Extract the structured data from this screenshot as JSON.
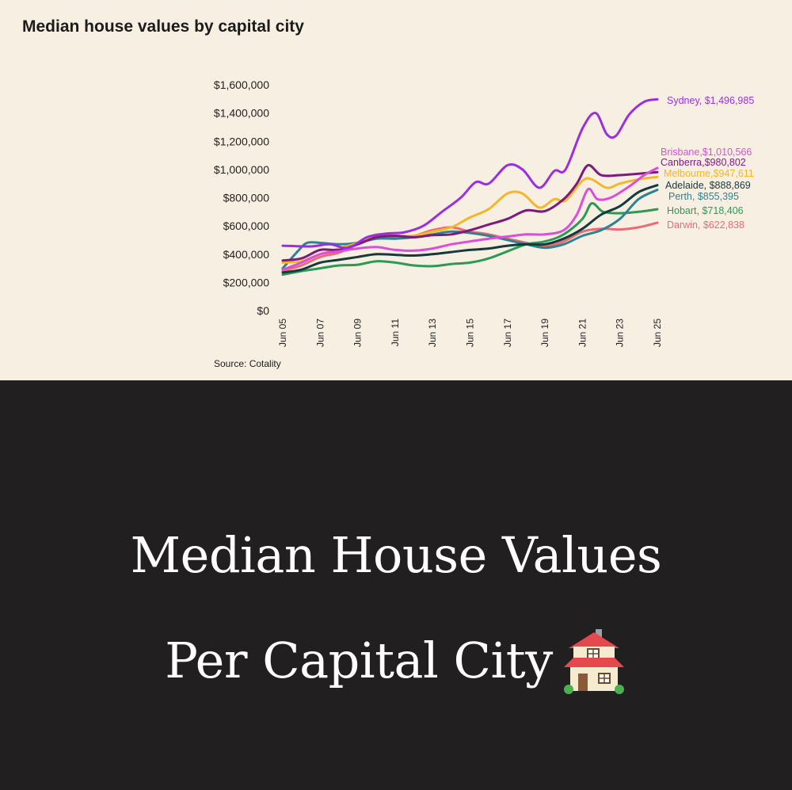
{
  "chart_data": {
    "type": "line",
    "title": "Median house values by capital city",
    "source": "Source: Cotality",
    "y_ticks": [
      "$0",
      "$200,000",
      "$400,000",
      "$600,000",
      "$800,000",
      "$1,000,000",
      "$1,200,000",
      "$1,400,000",
      "$1,600,000"
    ],
    "ylim": [
      0,
      1600000
    ],
    "x_ticks": [
      "Jun 05",
      "Jun 07",
      "Jun 09",
      "Jun 11",
      "Jun 13",
      "Jun 15",
      "Jun 17",
      "Jun 19",
      "Jun 21",
      "Jun 23",
      "Jun 25"
    ],
    "xlim": [
      2005.5,
      2025.5
    ],
    "grid": false,
    "legend": "end-labels",
    "series": [
      {
        "name": "Sydney",
        "end_label": "Sydney, $1,496,985",
        "color": "#9b2fe0",
        "points": [
          [
            2005.5,
            460000
          ],
          [
            2007,
            455000
          ],
          [
            2008,
            470000
          ],
          [
            2009,
            445000
          ],
          [
            2010,
            520000
          ],
          [
            2011,
            545000
          ],
          [
            2012,
            555000
          ],
          [
            2013,
            600000
          ],
          [
            2014,
            700000
          ],
          [
            2015,
            800000
          ],
          [
            2015.8,
            910000
          ],
          [
            2016.5,
            900000
          ],
          [
            2017.5,
            1030000
          ],
          [
            2018.3,
            1000000
          ],
          [
            2019.2,
            870000
          ],
          [
            2020,
            990000
          ],
          [
            2020.6,
            1000000
          ],
          [
            2021.5,
            1290000
          ],
          [
            2022.2,
            1400000
          ],
          [
            2022.8,
            1250000
          ],
          [
            2023.3,
            1240000
          ],
          [
            2024,
            1390000
          ],
          [
            2024.8,
            1480000
          ],
          [
            2025.5,
            1496985
          ]
        ]
      },
      {
        "name": "Brisbane",
        "end_label": "Brisbane,$1,010,566",
        "color": "#d94fd8",
        "points": [
          [
            2005.5,
            290000
          ],
          [
            2006.5,
            340000
          ],
          [
            2007.5,
            400000
          ],
          [
            2008.5,
            420000
          ],
          [
            2009.5,
            440000
          ],
          [
            2010.5,
            450000
          ],
          [
            2011.5,
            430000
          ],
          [
            2012.5,
            425000
          ],
          [
            2013.5,
            440000
          ],
          [
            2014.5,
            470000
          ],
          [
            2015.5,
            490000
          ],
          [
            2016.5,
            510000
          ],
          [
            2017.5,
            525000
          ],
          [
            2018.5,
            540000
          ],
          [
            2019.5,
            540000
          ],
          [
            2020.5,
            570000
          ],
          [
            2021.2,
            680000
          ],
          [
            2021.8,
            860000
          ],
          [
            2022.3,
            790000
          ],
          [
            2023,
            800000
          ],
          [
            2024,
            880000
          ],
          [
            2024.8,
            960000
          ],
          [
            2025.5,
            1010566
          ]
        ]
      },
      {
        "name": "Canberra",
        "end_label": "Canberra,$980,802",
        "color": "#7c1a7e",
        "points": [
          [
            2005.5,
            355000
          ],
          [
            2006.5,
            370000
          ],
          [
            2007.5,
            430000
          ],
          [
            2008.5,
            430000
          ],
          [
            2009.5,
            470000
          ],
          [
            2010.5,
            520000
          ],
          [
            2011.5,
            530000
          ],
          [
            2012.5,
            520000
          ],
          [
            2013.5,
            535000
          ],
          [
            2014.5,
            540000
          ],
          [
            2015.5,
            570000
          ],
          [
            2016.5,
            610000
          ],
          [
            2017.5,
            650000
          ],
          [
            2018.5,
            710000
          ],
          [
            2019.5,
            705000
          ],
          [
            2020.5,
            790000
          ],
          [
            2021.2,
            900000
          ],
          [
            2021.8,
            1030000
          ],
          [
            2022.5,
            960000
          ],
          [
            2023.5,
            960000
          ],
          [
            2024.5,
            970000
          ],
          [
            2025.5,
            980802
          ]
        ]
      },
      {
        "name": "Melbourne",
        "end_label": "Melbourne,$947,611",
        "color": "#f2b72a",
        "points": [
          [
            2005.5,
            340000
          ],
          [
            2006.5,
            350000
          ],
          [
            2007.5,
            400000
          ],
          [
            2008.5,
            440000
          ],
          [
            2009.5,
            480000
          ],
          [
            2010.5,
            540000
          ],
          [
            2011.5,
            530000
          ],
          [
            2012.5,
            530000
          ],
          [
            2013.5,
            560000
          ],
          [
            2014.5,
            590000
          ],
          [
            2015.5,
            660000
          ],
          [
            2016.5,
            720000
          ],
          [
            2017.5,
            830000
          ],
          [
            2018.3,
            830000
          ],
          [
            2019.2,
            730000
          ],
          [
            2020,
            790000
          ],
          [
            2020.6,
            780000
          ],
          [
            2021.5,
            920000
          ],
          [
            2022,
            930000
          ],
          [
            2022.8,
            870000
          ],
          [
            2023.5,
            900000
          ],
          [
            2024.5,
            930000
          ],
          [
            2025.5,
            947611
          ]
        ]
      },
      {
        "name": "Adelaide",
        "end_label": "Adelaide, $888,869",
        "color": "#153a3e",
        "points": [
          [
            2005.5,
            270000
          ],
          [
            2006.5,
            290000
          ],
          [
            2007.5,
            340000
          ],
          [
            2008.5,
            360000
          ],
          [
            2009.5,
            380000
          ],
          [
            2010.5,
            400000
          ],
          [
            2011.5,
            395000
          ],
          [
            2012.5,
            390000
          ],
          [
            2013.5,
            400000
          ],
          [
            2014.5,
            415000
          ],
          [
            2015.5,
            430000
          ],
          [
            2016.5,
            440000
          ],
          [
            2017.5,
            460000
          ],
          [
            2018.5,
            470000
          ],
          [
            2019.5,
            470000
          ],
          [
            2020.5,
            510000
          ],
          [
            2021.5,
            580000
          ],
          [
            2022.5,
            680000
          ],
          [
            2023.5,
            740000
          ],
          [
            2024.5,
            840000
          ],
          [
            2025.5,
            888869
          ]
        ]
      },
      {
        "name": "Perth",
        "end_label": "Perth, $855,395",
        "color": "#2d8390",
        "points": [
          [
            2005.5,
            300000
          ],
          [
            2006.3,
            420000
          ],
          [
            2006.8,
            480000
          ],
          [
            2007.5,
            480000
          ],
          [
            2008.5,
            470000
          ],
          [
            2009.5,
            480000
          ],
          [
            2010.5,
            510000
          ],
          [
            2011.5,
            510000
          ],
          [
            2012.5,
            520000
          ],
          [
            2013.5,
            540000
          ],
          [
            2014.5,
            560000
          ],
          [
            2015.5,
            550000
          ],
          [
            2016.5,
            530000
          ],
          [
            2017.5,
            500000
          ],
          [
            2018.5,
            470000
          ],
          [
            2019.5,
            445000
          ],
          [
            2020.5,
            470000
          ],
          [
            2021.5,
            530000
          ],
          [
            2022.5,
            570000
          ],
          [
            2023.5,
            650000
          ],
          [
            2024.5,
            790000
          ],
          [
            2025.5,
            855395
          ]
        ]
      },
      {
        "name": "Hobart",
        "end_label": "Hobart, $718,406",
        "color": "#2c9a55",
        "points": [
          [
            2005.5,
            255000
          ],
          [
            2006.5,
            280000
          ],
          [
            2007.5,
            300000
          ],
          [
            2008.5,
            320000
          ],
          [
            2009.5,
            325000
          ],
          [
            2010.5,
            350000
          ],
          [
            2011.5,
            340000
          ],
          [
            2012.5,
            320000
          ],
          [
            2013.5,
            315000
          ],
          [
            2014.5,
            330000
          ],
          [
            2015.5,
            340000
          ],
          [
            2016.5,
            370000
          ],
          [
            2017.5,
            420000
          ],
          [
            2018.5,
            470000
          ],
          [
            2019.5,
            490000
          ],
          [
            2020.5,
            540000
          ],
          [
            2021.5,
            650000
          ],
          [
            2022,
            760000
          ],
          [
            2022.6,
            700000
          ],
          [
            2023.5,
            690000
          ],
          [
            2024.5,
            700000
          ],
          [
            2025.5,
            718406
          ]
        ]
      },
      {
        "name": "Darwin",
        "end_label": "Darwin, $622,838",
        "color": "#ea6b73",
        "points": [
          [
            2005.5,
            280000
          ],
          [
            2006.5,
            320000
          ],
          [
            2007.5,
            380000
          ],
          [
            2008.5,
            410000
          ],
          [
            2009.5,
            470000
          ],
          [
            2010.5,
            530000
          ],
          [
            2011.5,
            520000
          ],
          [
            2012.5,
            530000
          ],
          [
            2013.5,
            570000
          ],
          [
            2014.5,
            590000
          ],
          [
            2015.5,
            560000
          ],
          [
            2016.5,
            540000
          ],
          [
            2017.5,
            510000
          ],
          [
            2018.5,
            480000
          ],
          [
            2019.5,
            455000
          ],
          [
            2020.5,
            490000
          ],
          [
            2021.5,
            560000
          ],
          [
            2022.5,
            580000
          ],
          [
            2023.5,
            575000
          ],
          [
            2024.5,
            590000
          ],
          [
            2025.5,
            622838
          ]
        ]
      }
    ]
  },
  "banner": {
    "line1": "Median House Values",
    "line2": "Per Capital City"
  }
}
